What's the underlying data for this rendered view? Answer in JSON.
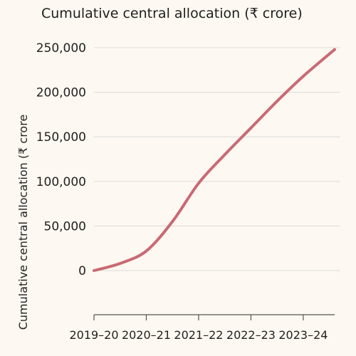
{
  "chart_data": {
    "type": "line",
    "title": "Cumulative central allocation (₹ crore)",
    "ylabel": "Cumulative central allocation (₹ crore",
    "xlabel": "",
    "categories": [
      "2019–20",
      "2020–21",
      "2021–22",
      "2022–23",
      "2023–24"
    ],
    "series": [
      {
        "color": "#c96a74",
        "points": [
          {
            "x": 0,
            "y": 0
          },
          {
            "x": 0.5,
            "y": 8000
          },
          {
            "x": 1.0,
            "y": 22000
          },
          {
            "x": 1.5,
            "y": 55000
          },
          {
            "x": 2.0,
            "y": 98000
          },
          {
            "x": 2.5,
            "y": 130000
          },
          {
            "x": 3.0,
            "y": 160000
          },
          {
            "x": 3.5,
            "y": 190000
          },
          {
            "x": 4.0,
            "y": 218000
          },
          {
            "x": 4.6,
            "y": 248000
          }
        ]
      }
    ],
    "yticks": [
      0,
      50000,
      100000,
      150000,
      200000,
      250000
    ],
    "ytick_labels": [
      "0",
      "50,000",
      "100,000",
      "150,000",
      "200,000",
      "250,000"
    ],
    "ylim": [
      -50000,
      260000
    ],
    "xlim": [
      0,
      4.6
    ],
    "grid": "horizontal",
    "colors": {
      "background": "#fdf8f1",
      "line": "#c96a74",
      "grid": "#dcdcdc",
      "axis": "#555555"
    }
  }
}
